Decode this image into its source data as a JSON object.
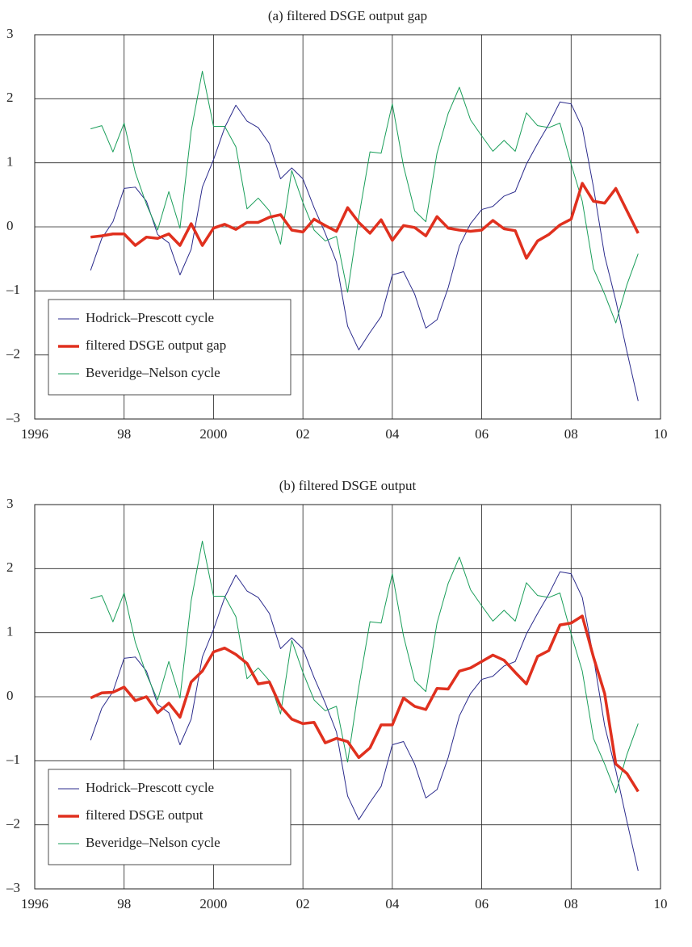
{
  "chart_data": [
    {
      "type": "line",
      "title": "(a) filtered DSGE output gap",
      "x": [
        1997.25,
        1997.5,
        1997.75,
        1998,
        1998.25,
        1998.5,
        1998.75,
        1999,
        1999.25,
        1999.5,
        1999.75,
        2000,
        2000.25,
        2000.5,
        2000.75,
        2001,
        2001.25,
        2001.5,
        2001.75,
        2002,
        2002.25,
        2002.5,
        2002.75,
        2003,
        2003.25,
        2003.5,
        2003.75,
        2004,
        2004.25,
        2004.5,
        2004.75,
        2005,
        2005.25,
        2005.5,
        2005.75,
        2006,
        2006.25,
        2006.5,
        2006.75,
        2007,
        2007.25,
        2007.5,
        2007.75,
        2008,
        2008.25,
        2008.5,
        2008.75,
        2009,
        2009.25,
        2009.5
      ],
      "series": [
        {
          "name": "Hodrick–Prescott cycle",
          "color": "#2b2b8c",
          "width": 1,
          "values": [
            -0.68,
            -0.18,
            0.08,
            0.6,
            0.62,
            0.4,
            -0.12,
            -0.25,
            -0.75,
            -0.35,
            0.62,
            1.05,
            1.55,
            1.9,
            1.65,
            1.55,
            1.3,
            0.75,
            0.92,
            0.75,
            0.3,
            -0.1,
            -0.55,
            -1.55,
            -1.92,
            -1.65,
            -1.4,
            -0.75,
            -0.7,
            -1.05,
            -1.58,
            -1.45,
            -0.95,
            -0.3,
            0.05,
            0.27,
            0.32,
            0.48,
            0.55,
            0.98,
            1.3,
            1.6,
            1.95,
            1.92,
            1.55,
            0.62,
            -0.45,
            -1.15,
            -1.95,
            -2.72
          ]
        },
        {
          "name": "filtered DSGE output gap",
          "color": "#e0301e",
          "width": 3.5,
          "values": [
            -0.16,
            -0.14,
            -0.11,
            -0.11,
            -0.29,
            -0.16,
            -0.18,
            -0.11,
            -0.29,
            0.05,
            -0.29,
            -0.02,
            0.04,
            -0.04,
            0.07,
            0.07,
            0.15,
            0.19,
            -0.05,
            -0.08,
            0.12,
            0.02,
            -0.07,
            0.3,
            0.07,
            -0.1,
            0.11,
            -0.21,
            0.02,
            -0.01,
            -0.14,
            0.16,
            -0.02,
            -0.05,
            -0.07,
            -0.05,
            0.1,
            -0.03,
            -0.06,
            -0.49,
            -0.22,
            -0.12,
            0.03,
            0.12,
            0.68,
            0.4,
            0.37,
            0.6,
            0.25,
            -0.1
          ]
        },
        {
          "name": "Beveridge–Nelson cycle",
          "color": "#1a9e5a",
          "width": 1,
          "values": [
            1.53,
            1.58,
            1.17,
            1.62,
            0.85,
            0.35,
            -0.05,
            0.55,
            -0.02,
            1.5,
            2.43,
            1.57,
            1.57,
            1.25,
            0.28,
            0.45,
            0.25,
            -0.27,
            0.88,
            0.38,
            -0.05,
            -0.22,
            -0.15,
            -1.02,
            0.15,
            1.17,
            1.15,
            1.92,
            0.95,
            0.25,
            0.08,
            1.15,
            1.77,
            2.18,
            1.67,
            1.42,
            1.18,
            1.35,
            1.18,
            1.78,
            1.58,
            1.55,
            1.62,
            0.98,
            0.4,
            -0.65,
            -1.05,
            -1.5,
            -0.9,
            -0.42
          ]
        }
      ],
      "xlim": [
        1996,
        2010
      ],
      "xticks": [
        1996,
        {
          "value": 1998,
          "label": "98"
        },
        2000,
        {
          "value": 2002,
          "label": "02"
        },
        {
          "value": 2004,
          "label": "04"
        },
        {
          "value": 2006,
          "label": "06"
        },
        {
          "value": 2008,
          "label": "08"
        },
        {
          "value": 2010,
          "label": "10"
        }
      ],
      "ylim": [
        -3,
        3
      ],
      "yticks": [
        {
          "value": -3,
          "label": "–3"
        },
        {
          "value": -2,
          "label": "–2"
        },
        {
          "value": -1,
          "label": "–1"
        },
        0,
        1,
        2,
        3
      ],
      "grid": true,
      "legend": "lower left"
    },
    {
      "type": "line",
      "title": "(b) filtered DSGE output",
      "x": [
        1997.25,
        1997.5,
        1997.75,
        1998,
        1998.25,
        1998.5,
        1998.75,
        1999,
        1999.25,
        1999.5,
        1999.75,
        2000,
        2000.25,
        2000.5,
        2000.75,
        2001,
        2001.25,
        2001.5,
        2001.75,
        2002,
        2002.25,
        2002.5,
        2002.75,
        2003,
        2003.25,
        2003.5,
        2003.75,
        2004,
        2004.25,
        2004.5,
        2004.75,
        2005,
        2005.25,
        2005.5,
        2005.75,
        2006,
        2006.25,
        2006.5,
        2006.75,
        2007,
        2007.25,
        2007.5,
        2007.75,
        2008,
        2008.25,
        2008.5,
        2008.75,
        2009,
        2009.25,
        2009.5
      ],
      "series": [
        {
          "name": "Hodrick–Prescott cycle",
          "color": "#2b2b8c",
          "width": 1,
          "values": [
            -0.68,
            -0.18,
            0.08,
            0.6,
            0.62,
            0.4,
            -0.12,
            -0.25,
            -0.75,
            -0.35,
            0.62,
            1.05,
            1.55,
            1.9,
            1.65,
            1.55,
            1.3,
            0.75,
            0.92,
            0.75,
            0.3,
            -0.1,
            -0.55,
            -1.55,
            -1.92,
            -1.65,
            -1.4,
            -0.75,
            -0.7,
            -1.05,
            -1.58,
            -1.45,
            -0.95,
            -0.3,
            0.05,
            0.27,
            0.32,
            0.48,
            0.55,
            0.98,
            1.3,
            1.6,
            1.95,
            1.92,
            1.55,
            0.62,
            -0.45,
            -1.15,
            -1.95,
            -2.72
          ]
        },
        {
          "name": "filtered DSGE output",
          "color": "#e0301e",
          "width": 3.5,
          "values": [
            -0.02,
            0.06,
            0.07,
            0.15,
            -0.06,
            0.0,
            -0.25,
            -0.1,
            -0.32,
            0.23,
            0.4,
            0.7,
            0.76,
            0.66,
            0.52,
            0.2,
            0.23,
            -0.15,
            -0.35,
            -0.42,
            -0.4,
            -0.72,
            -0.65,
            -0.7,
            -0.95,
            -0.8,
            -0.44,
            -0.44,
            -0.02,
            -0.15,
            -0.2,
            0.13,
            0.12,
            0.4,
            0.45,
            0.55,
            0.65,
            0.57,
            0.38,
            0.2,
            0.63,
            0.72,
            1.12,
            1.15,
            1.26,
            0.62,
            0.05,
            -1.05,
            -1.2,
            -1.48
          ]
        },
        {
          "name": "Beveridge–Nelson cycle",
          "color": "#1a9e5a",
          "width": 1,
          "values": [
            1.53,
            1.58,
            1.17,
            1.62,
            0.85,
            0.35,
            -0.05,
            0.55,
            -0.02,
            1.5,
            2.43,
            1.57,
            1.57,
            1.25,
            0.28,
            0.45,
            0.25,
            -0.27,
            0.88,
            0.38,
            -0.05,
            -0.22,
            -0.15,
            -1.02,
            0.15,
            1.17,
            1.15,
            1.92,
            0.95,
            0.25,
            0.08,
            1.15,
            1.77,
            2.18,
            1.67,
            1.42,
            1.18,
            1.35,
            1.18,
            1.78,
            1.58,
            1.55,
            1.62,
            0.98,
            0.4,
            -0.65,
            -1.05,
            -1.5,
            -0.9,
            -0.42
          ]
        }
      ],
      "xlim": [
        1996,
        2010
      ],
      "xticks": [
        1996,
        {
          "value": 1998,
          "label": "98"
        },
        2000,
        {
          "value": 2002,
          "label": "02"
        },
        {
          "value": 2004,
          "label": "04"
        },
        {
          "value": 2006,
          "label": "06"
        },
        {
          "value": 2008,
          "label": "08"
        },
        {
          "value": 2010,
          "label": "10"
        }
      ],
      "ylim": [
        -3,
        3
      ],
      "yticks": [
        {
          "value": -3,
          "label": "–3"
        },
        {
          "value": -2,
          "label": "–2"
        },
        {
          "value": -1,
          "label": "–1"
        },
        0,
        1,
        2,
        3
      ],
      "grid": true,
      "legend": "lower left"
    }
  ]
}
